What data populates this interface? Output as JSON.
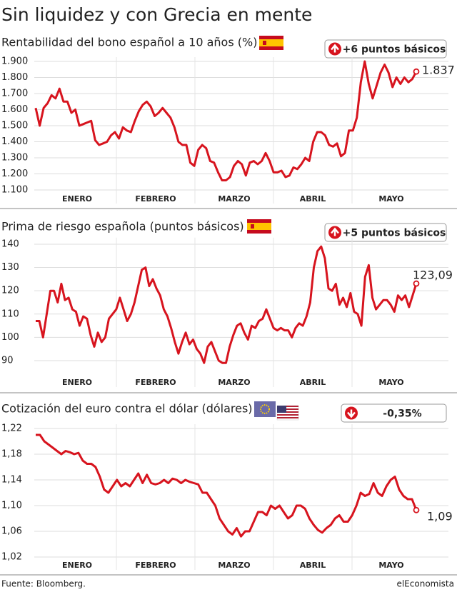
{
  "title": "Sin liquidez y con Grecia en mente",
  "chart_data": [
    {
      "type": "line",
      "title": "Rentabilidad del bono español a 10 años (%)",
      "badge": "+6 puntos básicos",
      "badge_direction": "up",
      "color": "#d7141e",
      "months": [
        "ENERO",
        "FEBRERO",
        "MARZO",
        "ABRIL",
        "MAYO"
      ],
      "values": [
        1.61,
        1.5,
        1.61,
        1.64,
        1.69,
        1.67,
        1.73,
        1.65,
        1.65,
        1.58,
        1.6,
        1.5,
        1.51,
        1.52,
        1.53,
        1.41,
        1.38,
        1.39,
        1.4,
        1.44,
        1.46,
        1.42,
        1.49,
        1.47,
        1.46,
        1.53,
        1.59,
        1.63,
        1.65,
        1.62,
        1.56,
        1.58,
        1.61,
        1.58,
        1.55,
        1.49,
        1.4,
        1.38,
        1.38,
        1.27,
        1.25,
        1.35,
        1.38,
        1.36,
        1.28,
        1.27,
        1.21,
        1.16,
        1.16,
        1.18,
        1.25,
        1.28,
        1.26,
        1.19,
        1.27,
        1.28,
        1.26,
        1.28,
        1.33,
        1.28,
        1.21,
        1.21,
        1.22,
        1.18,
        1.19,
        1.24,
        1.23,
        1.26,
        1.3,
        1.28,
        1.4,
        1.46,
        1.46,
        1.44,
        1.38,
        1.37,
        1.39,
        1.31,
        1.33,
        1.47,
        1.47,
        1.55,
        1.77,
        1.9,
        1.76,
        1.67,
        1.75,
        1.83,
        1.88,
        1.83,
        1.74,
        1.8,
        1.76,
        1.8,
        1.77,
        1.79,
        1.837
      ],
      "ylim": [
        1.1,
        1.9
      ],
      "yticks": [
        {
          "value": 1.1,
          "label": "1.100"
        },
        {
          "value": 1.2,
          "label": "1.200"
        },
        {
          "value": 1.3,
          "label": "1.300"
        },
        {
          "value": 1.4,
          "label": "1.400"
        },
        {
          "value": 1.5,
          "label": "1.500"
        },
        {
          "value": 1.6,
          "label": "1.600"
        },
        {
          "value": 1.7,
          "label": "1.700"
        },
        {
          "value": 1.8,
          "label": "1.800"
        },
        {
          "value": 1.9,
          "label": "1.900"
        }
      ],
      "grid": true
    },
    {
      "type": "line",
      "title": "Prima de riesgo española (puntos básicos)",
      "badge": "+5 puntos básicos",
      "badge_direction": "up",
      "color": "#d7141e",
      "months": [
        "ENERO",
        "FEBRERO",
        "MARZO",
        "ABRIL",
        "MAYO"
      ],
      "values": [
        107,
        107,
        100,
        110,
        120,
        120,
        115,
        123,
        116,
        117,
        112,
        111,
        105,
        109,
        108,
        101,
        96,
        102,
        98,
        100,
        108,
        110,
        112,
        117,
        112,
        107,
        110,
        115,
        122,
        129,
        130,
        122,
        125,
        121,
        118,
        112,
        109,
        104,
        98,
        93,
        98,
        102,
        97,
        99,
        95,
        93,
        89,
        96,
        98,
        94,
        90,
        89,
        89,
        96,
        101,
        105,
        106,
        102,
        99,
        105,
        104,
        107,
        108,
        112,
        108,
        104,
        103,
        104,
        103,
        103,
        100,
        104,
        106,
        105,
        109,
        115,
        130,
        137,
        139,
        134,
        121,
        120,
        123,
        114,
        117,
        113,
        119,
        111,
        110,
        105,
        126,
        131,
        117,
        112,
        114,
        116,
        116,
        114,
        111,
        118,
        116,
        118,
        113,
        118,
        123.09
      ],
      "value_labels": {
        "104": "123,09"
      },
      "ylim": [
        86,
        141
      ],
      "yticks": [
        90,
        100,
        110,
        120,
        130,
        140
      ],
      "grid": true
    },
    {
      "type": "line",
      "title": "Cotización del euro contra el dólar (dólares)",
      "badge": "-0,35%",
      "badge_direction": "down",
      "color": "#d7141e",
      "months": [
        "ENERO",
        "FEBRERO",
        "MARZO",
        "ABRIL",
        "MAYO"
      ],
      "values": [
        1.21,
        1.21,
        1.2,
        1.195,
        1.19,
        1.185,
        1.18,
        1.185,
        1.183,
        1.18,
        1.182,
        1.17,
        1.165,
        1.165,
        1.16,
        1.145,
        1.125,
        1.12,
        1.13,
        1.14,
        1.13,
        1.135,
        1.13,
        1.14,
        1.15,
        1.135,
        1.148,
        1.135,
        1.133,
        1.135,
        1.14,
        1.135,
        1.142,
        1.14,
        1.135,
        1.14,
        1.137,
        1.135,
        1.133,
        1.12,
        1.12,
        1.11,
        1.1,
        1.08,
        1.07,
        1.06,
        1.055,
        1.065,
        1.052,
        1.06,
        1.06,
        1.075,
        1.09,
        1.09,
        1.085,
        1.1,
        1.095,
        1.1,
        1.09,
        1.08,
        1.085,
        1.1,
        1.1,
        1.095,
        1.08,
        1.07,
        1.062,
        1.058,
        1.065,
        1.07,
        1.08,
        1.085,
        1.075,
        1.075,
        1.085,
        1.1,
        1.12,
        1.115,
        1.118,
        1.135,
        1.12,
        1.115,
        1.13,
        1.14,
        1.145,
        1.125,
        1.115,
        1.11,
        1.11,
        1.093
      ],
      "value_labels": {
        "89": "1,09"
      },
      "ylim": [
        1.02,
        1.22
      ],
      "yticks": [
        {
          "value": 1.02,
          "label": "1,02"
        },
        {
          "value": 1.06,
          "label": "1,06"
        },
        {
          "value": 1.1,
          "label": "1,10"
        },
        {
          "value": 1.14,
          "label": "1,14"
        },
        {
          "value": 1.18,
          "label": "1,18"
        },
        {
          "value": 1.22,
          "label": "1,22"
        }
      ],
      "grid": true
    }
  ],
  "footer": {
    "source": "Fuente: Bloomberg.",
    "brand": "elEconomista"
  }
}
